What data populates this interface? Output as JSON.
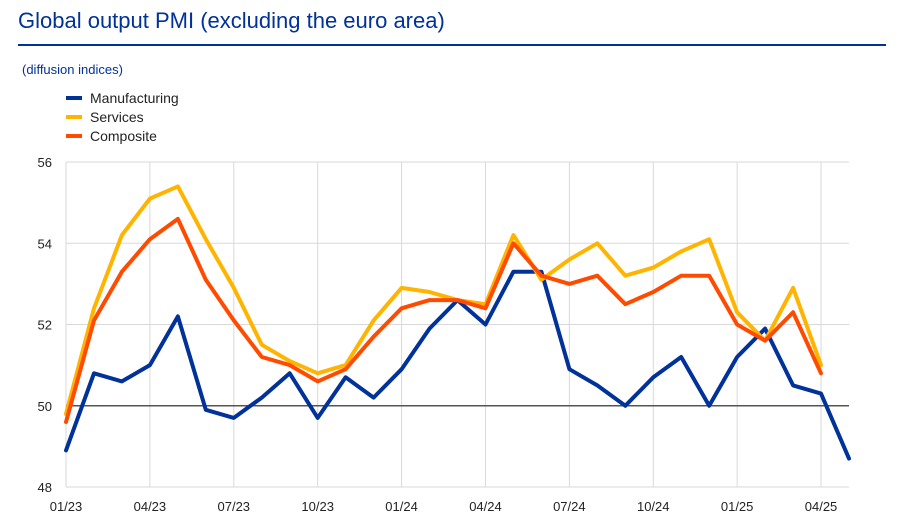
{
  "chart_data": {
    "type": "line",
    "title": "Global output PMI (excluding the euro area)",
    "subtitle": "(diffusion indices)",
    "ylim": [
      48,
      56
    ],
    "y_ticks": [
      48,
      50,
      52,
      54,
      56
    ],
    "reference_line": 50,
    "x": [
      "01/23",
      "02/23",
      "03/23",
      "04/23",
      "05/23",
      "06/23",
      "07/23",
      "08/23",
      "09/23",
      "10/23",
      "11/23",
      "12/23",
      "01/24",
      "02/24",
      "03/24",
      "04/24",
      "05/24",
      "06/24",
      "07/24",
      "08/24",
      "09/24",
      "10/24",
      "11/24",
      "12/24",
      "01/25",
      "02/25",
      "03/25",
      "04/25",
      "05/25"
    ],
    "x_tick_labels": [
      "01/23",
      "04/23",
      "07/23",
      "10/23",
      "01/24",
      "04/24",
      "07/24",
      "10/24",
      "01/25",
      "04/25"
    ],
    "series": [
      {
        "name": "Manufacturing",
        "color": "#003299",
        "values": [
          48.9,
          50.8,
          50.6,
          51.0,
          52.2,
          49.9,
          49.7,
          50.2,
          50.8,
          49.7,
          50.7,
          50.2,
          50.9,
          51.9,
          52.6,
          52.0,
          53.3,
          53.3,
          50.9,
          50.5,
          50.0,
          50.7,
          51.2,
          50.0,
          51.2,
          51.9,
          50.5,
          50.3,
          48.7
        ],
        "legend": "Manufacturing"
      },
      {
        "name": "Services",
        "color": "#FFB400",
        "values": [
          49.8,
          52.4,
          54.2,
          55.1,
          55.4,
          54.1,
          52.9,
          51.5,
          51.1,
          50.8,
          51.0,
          52.1,
          52.9,
          52.8,
          52.6,
          52.5,
          54.2,
          53.1,
          53.6,
          54.0,
          53.2,
          53.4,
          53.8,
          54.1,
          52.3,
          51.6,
          52.9,
          51.0,
          null
        ],
        "legend": "Services"
      },
      {
        "name": "Composite",
        "color": "#FF4B00",
        "values": [
          49.6,
          52.1,
          53.3,
          54.1,
          54.6,
          53.1,
          52.1,
          51.2,
          51.0,
          50.6,
          50.9,
          51.7,
          52.4,
          52.6,
          52.6,
          52.4,
          54.0,
          53.2,
          53.0,
          53.2,
          52.5,
          52.8,
          53.2,
          53.2,
          52.0,
          51.6,
          52.3,
          50.8,
          null
        ],
        "legend": "Composite"
      }
    ]
  }
}
